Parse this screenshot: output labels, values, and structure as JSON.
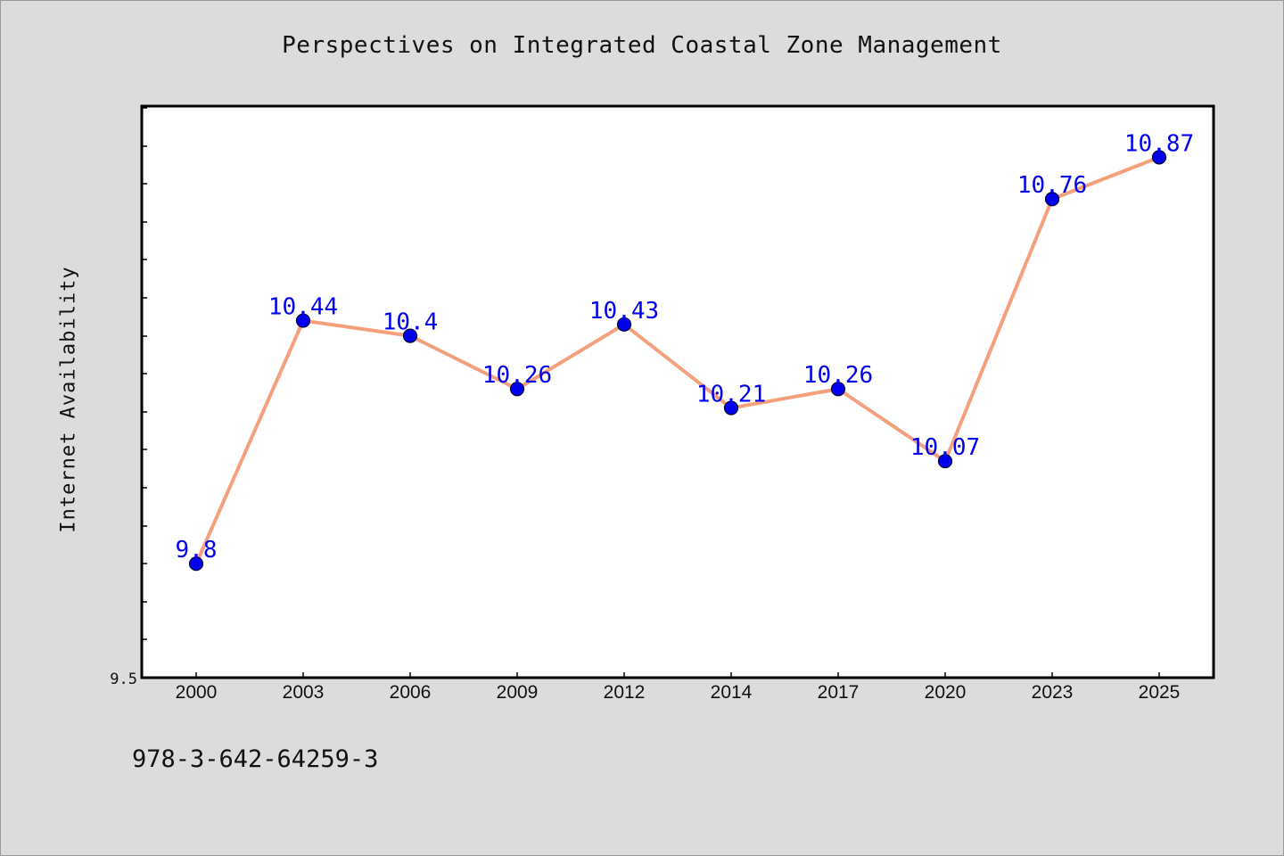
{
  "chart_data": {
    "type": "line",
    "title": "Perspectives on Integrated Coastal Zone Management",
    "xlabel": "",
    "ylabel": "Internet Availability",
    "categories": [
      "2000",
      "2003",
      "2006",
      "2009",
      "2012",
      "2014",
      "2017",
      "2020",
      "2023",
      "2025"
    ],
    "series": [
      {
        "values": [
          9.8,
          10.44,
          10.4,
          10.26,
          10.43,
          10.21,
          10.26,
          10.07,
          10.76,
          10.87
        ],
        "labels": [
          "9.8",
          "10.44",
          "10.4",
          "10.26",
          "10.43",
          "10.21",
          "10.26",
          "10.07",
          "10.76",
          "10.87"
        ]
      }
    ],
    "ylim": [
      9.5,
      11.0
    ],
    "yticks_labeled": [
      "9.5"
    ],
    "grid": false,
    "legend": "none",
    "colors": {
      "line": "#f4a07c",
      "marker_fill": "#0000ee",
      "marker_edge": "#000033",
      "data_label": "#0000ee",
      "background": "#dcdcdc",
      "plot_area": "#ffffff"
    }
  },
  "footer": {
    "code": "978-3-642-64259-3"
  }
}
